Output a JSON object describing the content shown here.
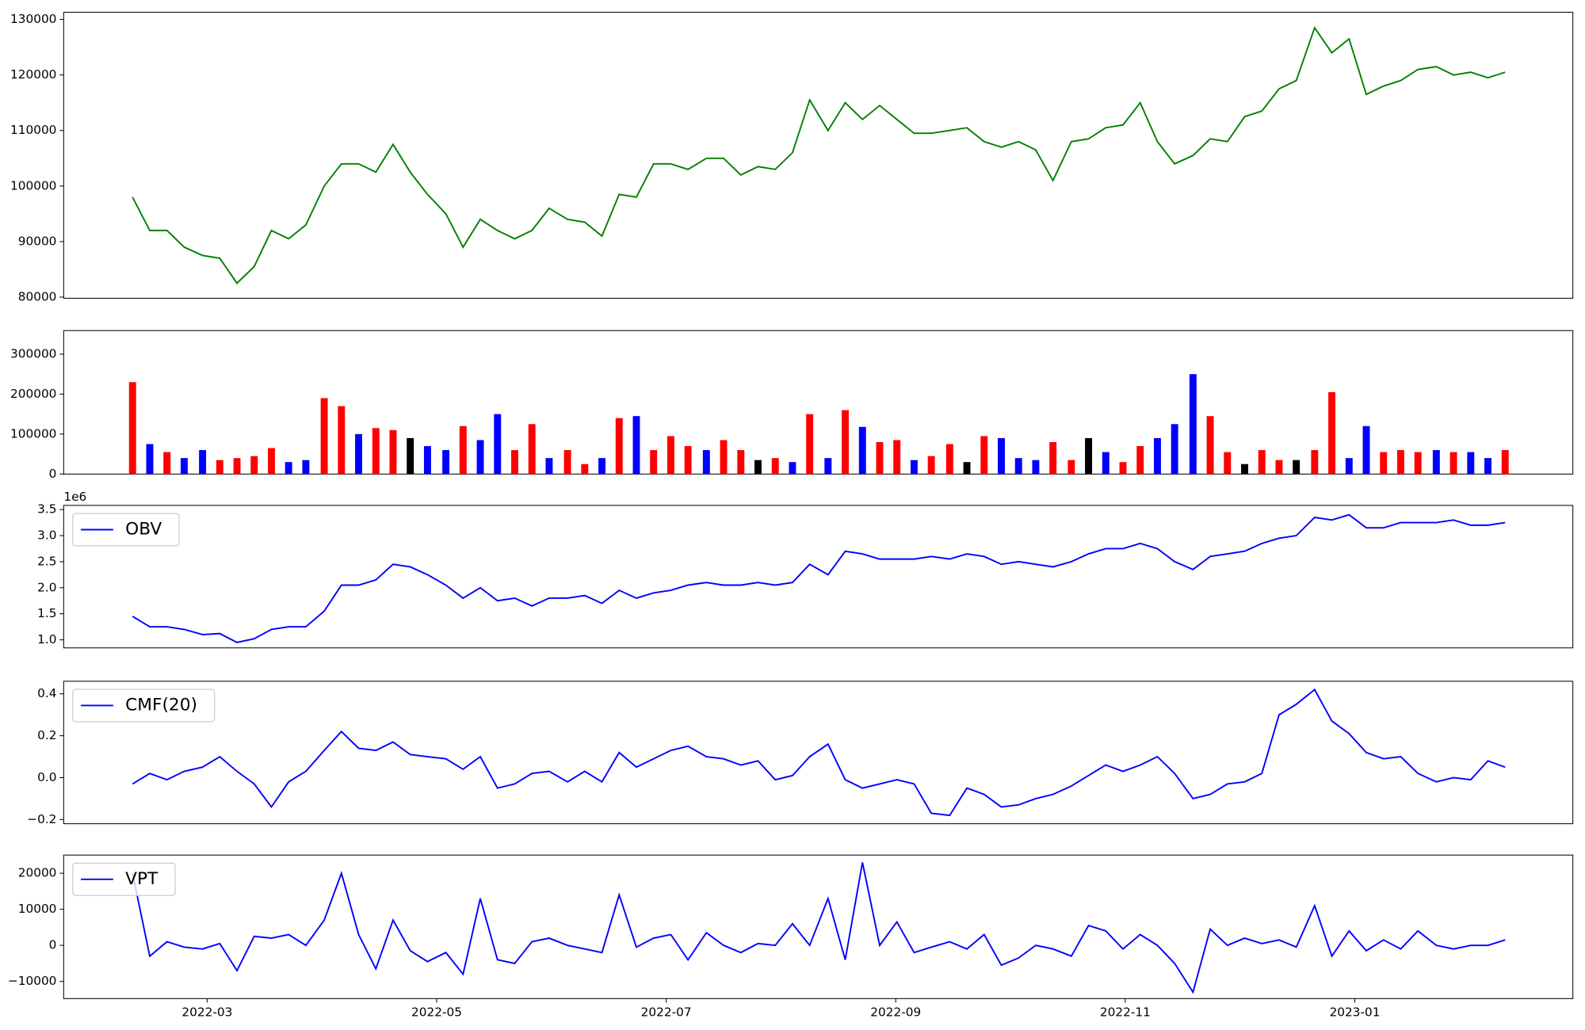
{
  "chart_data": [
    {
      "type": "line",
      "ylim": [
        79800,
        131300
      ],
      "yticks": [
        80000,
        90000,
        100000,
        110000,
        120000,
        130000
      ],
      "xlim": [
        0.75,
        13.9
      ],
      "x": [
        1.35,
        1.5,
        1.65,
        1.8,
        1.96,
        2.11,
        2.26,
        2.41,
        2.56,
        2.71,
        2.86,
        3.02,
        3.17,
        3.32,
        3.47,
        3.62,
        3.77,
        3.92,
        4.08,
        4.23,
        4.38,
        4.53,
        4.68,
        4.83,
        4.98,
        5.14,
        5.29,
        5.44,
        5.59,
        5.74,
        5.89,
        6.04,
        6.19,
        6.35,
        6.5,
        6.65,
        6.8,
        6.95,
        7.1,
        7.25,
        7.41,
        7.56,
        7.71,
        7.86,
        8.01,
        8.16,
        8.31,
        8.47,
        8.62,
        8.77,
        8.92,
        9.07,
        9.22,
        9.37,
        9.53,
        9.68,
        9.83,
        9.98,
        10.13,
        10.28,
        10.43,
        10.59,
        10.74,
        10.89,
        11.04,
        11.19,
        11.34,
        11.49,
        11.65,
        11.8,
        11.95,
        12.1,
        12.25,
        12.4,
        12.55,
        12.71,
        12.86,
        13.01,
        13.16,
        13.31
      ],
      "series": [
        {
          "color": "#008000",
          "values": [
            98000,
            92000,
            92000,
            89000,
            87500,
            87000,
            82500,
            85500,
            92000,
            90500,
            93000,
            100000,
            104000,
            104000,
            102500,
            107500,
            102500,
            98500,
            95000,
            89000,
            94000,
            92000,
            90500,
            92000,
            96000,
            94000,
            93500,
            91000,
            98500,
            98000,
            104000,
            104000,
            103000,
            105000,
            105000,
            102000,
            103500,
            103000,
            106000,
            115500,
            110000,
            115000,
            112000,
            114500,
            112000,
            109500,
            109500,
            110000,
            110500,
            108000,
            107000,
            108000,
            106500,
            101000,
            108000,
            108500,
            110500,
            111000,
            115000,
            108000,
            104000,
            105500,
            108500,
            108000,
            112500,
            113500,
            117500,
            119000,
            128500,
            124000,
            126500,
            116500,
            118000,
            119000,
            121000,
            121500,
            120000,
            120500,
            119500,
            120500
          ]
        }
      ]
    },
    {
      "type": "bar",
      "ylim": [
        0,
        359000
      ],
      "yticks": [
        0,
        100000,
        200000,
        300000
      ],
      "xlim": [
        0.75,
        13.9
      ],
      "x": [
        1.35,
        1.5,
        1.65,
        1.8,
        1.96,
        2.11,
        2.26,
        2.41,
        2.56,
        2.71,
        2.86,
        3.02,
        3.17,
        3.32,
        3.47,
        3.62,
        3.77,
        3.92,
        4.08,
        4.23,
        4.38,
        4.53,
        4.68,
        4.83,
        4.98,
        5.14,
        5.29,
        5.44,
        5.59,
        5.74,
        5.89,
        6.04,
        6.19,
        6.35,
        6.5,
        6.65,
        6.8,
        6.95,
        7.1,
        7.25,
        7.41,
        7.56,
        7.71,
        7.86,
        8.01,
        8.16,
        8.31,
        8.47,
        8.62,
        8.77,
        8.92,
        9.07,
        9.22,
        9.37,
        9.53,
        9.68,
        9.83,
        9.98,
        10.13,
        10.28,
        10.43,
        10.59,
        10.74,
        10.89,
        11.04,
        11.19,
        11.34,
        11.49,
        11.65,
        11.8,
        11.95,
        12.1,
        12.25,
        12.4,
        12.55,
        12.71,
        12.86,
        13.01,
        13.16,
        13.31
      ],
      "series": [
        {
          "values": [
            230000,
            75000,
            55000,
            40000,
            60000,
            35000,
            40000,
            45000,
            65000,
            30000,
            35000,
            190000,
            170000,
            100000,
            115000,
            110000,
            90000,
            70000,
            60000,
            120000,
            85000,
            150000,
            60000,
            125000,
            40000,
            60000,
            25000,
            40000,
            140000,
            145000,
            60000,
            95000,
            70000,
            60000,
            85000,
            60000,
            35000,
            40000,
            30000,
            150000,
            40000,
            160000,
            118000,
            80000,
            85000,
            35000,
            45000,
            75000,
            30000,
            95000,
            90000,
            40000,
            35000,
            80000,
            35000,
            90000,
            55000,
            30000,
            70000,
            90000,
            125000,
            250000,
            145000,
            55000,
            25000,
            60000,
            35000,
            35000,
            60000,
            205000,
            40000,
            120000,
            55000,
            60000,
            55000,
            60000,
            55000,
            55000,
            40000,
            60000
          ],
          "colors": [
            "red",
            "blue",
            "red",
            "blue",
            "blue",
            "red",
            "red",
            "red",
            "red",
            "blue",
            "blue",
            "red",
            "red",
            "blue",
            "red",
            "red",
            "black",
            "blue",
            "blue",
            "red",
            "blue",
            "blue",
            "red",
            "red",
            "blue",
            "red",
            "red",
            "blue",
            "red",
            "blue",
            "red",
            "red",
            "red",
            "blue",
            "red",
            "red",
            "black",
            "red",
            "blue",
            "red",
            "blue",
            "red",
            "blue",
            "red",
            "red",
            "blue",
            "red",
            "red",
            "black",
            "red",
            "blue",
            "blue",
            "blue",
            "red",
            "red",
            "black",
            "blue",
            "red",
            "red",
            "blue",
            "blue",
            "blue",
            "red",
            "red",
            "black",
            "red",
            "red",
            "black",
            "red",
            "red",
            "blue",
            "blue",
            "red",
            "red",
            "red",
            "blue",
            "red",
            "blue",
            "blue",
            "red"
          ]
        }
      ]
    },
    {
      "type": "line",
      "ylim": [
        0.845,
        3.58
      ],
      "yticks": [
        {
          "value": 1,
          "label": "1.0"
        },
        1.5,
        {
          "value": 2,
          "label": "2.0"
        },
        2.5,
        {
          "value": 3,
          "label": "3.0"
        },
        3.5
      ],
      "y_offset_label": "1e6",
      "legend": "upper left",
      "xlim": [
        0.75,
        13.9
      ],
      "x": [
        1.35,
        1.5,
        1.65,
        1.8,
        1.96,
        2.11,
        2.26,
        2.41,
        2.56,
        2.71,
        2.86,
        3.02,
        3.17,
        3.32,
        3.47,
        3.62,
        3.77,
        3.92,
        4.08,
        4.23,
        4.38,
        4.53,
        4.68,
        4.83,
        4.98,
        5.14,
        5.29,
        5.44,
        5.59,
        5.74,
        5.89,
        6.04,
        6.19,
        6.35,
        6.5,
        6.65,
        6.8,
        6.95,
        7.1,
        7.25,
        7.41,
        7.56,
        7.71,
        7.86,
        8.01,
        8.16,
        8.31,
        8.47,
        8.62,
        8.77,
        8.92,
        9.07,
        9.22,
        9.37,
        9.53,
        9.68,
        9.83,
        9.98,
        10.13,
        10.28,
        10.43,
        10.59,
        10.74,
        10.89,
        11.04,
        11.19,
        11.34,
        11.49,
        11.65,
        11.8,
        11.95,
        12.1,
        12.25,
        12.4,
        12.55,
        12.71,
        12.86,
        13.01,
        13.16,
        13.31
      ],
      "series": [
        {
          "name": "OBV",
          "color": "#0000ff",
          "values": [
            1.45,
            1.25,
            1.25,
            1.2,
            1.1,
            1.12,
            0.95,
            1.02,
            1.2,
            1.25,
            1.25,
            1.55,
            2.05,
            2.05,
            2.15,
            2.45,
            2.4,
            2.25,
            2.05,
            1.8,
            2.0,
            1.75,
            1.8,
            1.65,
            1.8,
            1.8,
            1.85,
            1.7,
            1.95,
            1.8,
            1.9,
            1.95,
            2.05,
            2.1,
            2.05,
            2.05,
            2.1,
            2.05,
            2.1,
            2.45,
            2.25,
            2.7,
            2.65,
            2.55,
            2.55,
            2.55,
            2.6,
            2.55,
            2.65,
            2.6,
            2.45,
            2.5,
            2.45,
            2.4,
            2.5,
            2.65,
            2.75,
            2.75,
            2.85,
            2.75,
            2.5,
            2.35,
            2.6,
            2.65,
            2.7,
            2.85,
            2.95,
            3.0,
            3.35,
            3.3,
            3.4,
            3.15,
            3.15,
            3.25,
            3.25,
            3.25,
            3.3,
            3.2,
            3.2,
            3.25
          ]
        }
      ]
    },
    {
      "type": "line",
      "ylim": [
        -0.22,
        0.46
      ],
      "yticks": [
        {
          "value": -0.2,
          "label": "−0.2"
        },
        {
          "value": 0,
          "label": "0.0"
        },
        0.2,
        0.4
      ],
      "legend": "upper left",
      "xlim": [
        0.75,
        13.9
      ],
      "x": [
        1.35,
        1.5,
        1.65,
        1.8,
        1.96,
        2.11,
        2.26,
        2.41,
        2.56,
        2.71,
        2.86,
        3.02,
        3.17,
        3.32,
        3.47,
        3.62,
        3.77,
        3.92,
        4.08,
        4.23,
        4.38,
        4.53,
        4.68,
        4.83,
        4.98,
        5.14,
        5.29,
        5.44,
        5.59,
        5.74,
        5.89,
        6.04,
        6.19,
        6.35,
        6.5,
        6.65,
        6.8,
        6.95,
        7.1,
        7.25,
        7.41,
        7.56,
        7.71,
        7.86,
        8.01,
        8.16,
        8.31,
        8.47,
        8.62,
        8.77,
        8.92,
        9.07,
        9.22,
        9.37,
        9.53,
        9.68,
        9.83,
        9.98,
        10.13,
        10.28,
        10.43,
        10.59,
        10.74,
        10.89,
        11.04,
        11.19,
        11.34,
        11.49,
        11.65,
        11.8,
        11.95,
        12.1,
        12.25,
        12.4,
        12.55,
        12.71,
        12.86,
        13.01,
        13.16,
        13.31
      ],
      "series": [
        {
          "name": "CMF(20)",
          "color": "#0000ff",
          "values": [
            -0.03,
            0.02,
            -0.01,
            0.03,
            0.05,
            0.1,
            0.03,
            -0.03,
            -0.14,
            -0.02,
            0.03,
            0.13,
            0.22,
            0.14,
            0.13,
            0.17,
            0.11,
            0.1,
            0.09,
            0.04,
            0.1,
            -0.05,
            -0.03,
            0.02,
            0.03,
            -0.02,
            0.03,
            -0.02,
            0.12,
            0.05,
            0.09,
            0.13,
            0.15,
            0.1,
            0.09,
            0.06,
            0.08,
            -0.01,
            0.01,
            0.1,
            0.16,
            -0.01,
            -0.05,
            -0.03,
            -0.01,
            -0.03,
            -0.17,
            -0.18,
            -0.05,
            -0.08,
            -0.14,
            -0.13,
            -0.1,
            -0.08,
            -0.04,
            0.01,
            0.06,
            0.03,
            0.06,
            0.1,
            0.02,
            -0.1,
            -0.08,
            -0.03,
            -0.02,
            0.02,
            0.3,
            0.35,
            0.42,
            0.27,
            0.21,
            0.12,
            0.09,
            0.1,
            0.02,
            -0.02,
            0.0,
            -0.01,
            0.08,
            0.05
          ]
        }
      ]
    },
    {
      "type": "line",
      "ylim": [
        -14760,
        25040
      ],
      "yticks": [
        {
          "value": -10000,
          "label": "−10000"
        },
        0,
        10000,
        20000
      ],
      "legend": "upper left",
      "xlim": [
        0.75,
        13.9
      ],
      "xticks": [
        {
          "value": 2,
          "label": "2022-03"
        },
        {
          "value": 4,
          "label": "2022-05"
        },
        {
          "value": 6,
          "label": "2022-07"
        },
        {
          "value": 8,
          "label": "2022-09"
        },
        {
          "value": 10,
          "label": "2022-11"
        },
        {
          "value": 12,
          "label": "2023-01"
        }
      ],
      "x": [
        1.35,
        1.5,
        1.65,
        1.8,
        1.96,
        2.11,
        2.26,
        2.41,
        2.56,
        2.71,
        2.86,
        3.02,
        3.17,
        3.32,
        3.47,
        3.62,
        3.77,
        3.92,
        4.08,
        4.23,
        4.38,
        4.53,
        4.68,
        4.83,
        4.98,
        5.14,
        5.29,
        5.44,
        5.59,
        5.74,
        5.89,
        6.04,
        6.19,
        6.35,
        6.5,
        6.65,
        6.8,
        6.95,
        7.1,
        7.25,
        7.41,
        7.56,
        7.71,
        7.86,
        8.01,
        8.16,
        8.31,
        8.47,
        8.62,
        8.77,
        8.92,
        9.07,
        9.22,
        9.37,
        9.53,
        9.68,
        9.83,
        9.98,
        10.13,
        10.28,
        10.43,
        10.59,
        10.74,
        10.89,
        11.04,
        11.19,
        11.34,
        11.49,
        11.65,
        11.8,
        11.95,
        12.1,
        12.25,
        12.4,
        12.55,
        12.71,
        12.86,
        13.01,
        13.16,
        13.31
      ],
      "series": [
        {
          "name": "VPT",
          "color": "#0000ff",
          "values": [
            20000,
            -3000,
            1000,
            -500,
            -1000,
            500,
            -7000,
            2500,
            2000,
            3000,
            0,
            7000,
            20000,
            3000,
            -6500,
            7000,
            -1500,
            -4500,
            -2000,
            -8000,
            13000,
            -4000,
            -5000,
            1000,
            2000,
            0,
            -1000,
            -2000,
            14000,
            -500,
            2000,
            3000,
            -4000,
            3500,
            0,
            -2000,
            500,
            0,
            6000,
            0,
            13000,
            -4000,
            23000,
            0,
            6500,
            -2000,
            -500,
            1000,
            -1000,
            3000,
            -5500,
            -3500,
            0,
            -1000,
            -3000,
            5500,
            4000,
            -1000,
            3000,
            0,
            -5000,
            -13000,
            4500,
            0,
            2000,
            500,
            1500,
            -500,
            11000,
            -3000,
            4000,
            -1500,
            1500,
            -1000,
            4000,
            0,
            -1000,
            0,
            0,
            1500
          ]
        }
      ]
    }
  ]
}
